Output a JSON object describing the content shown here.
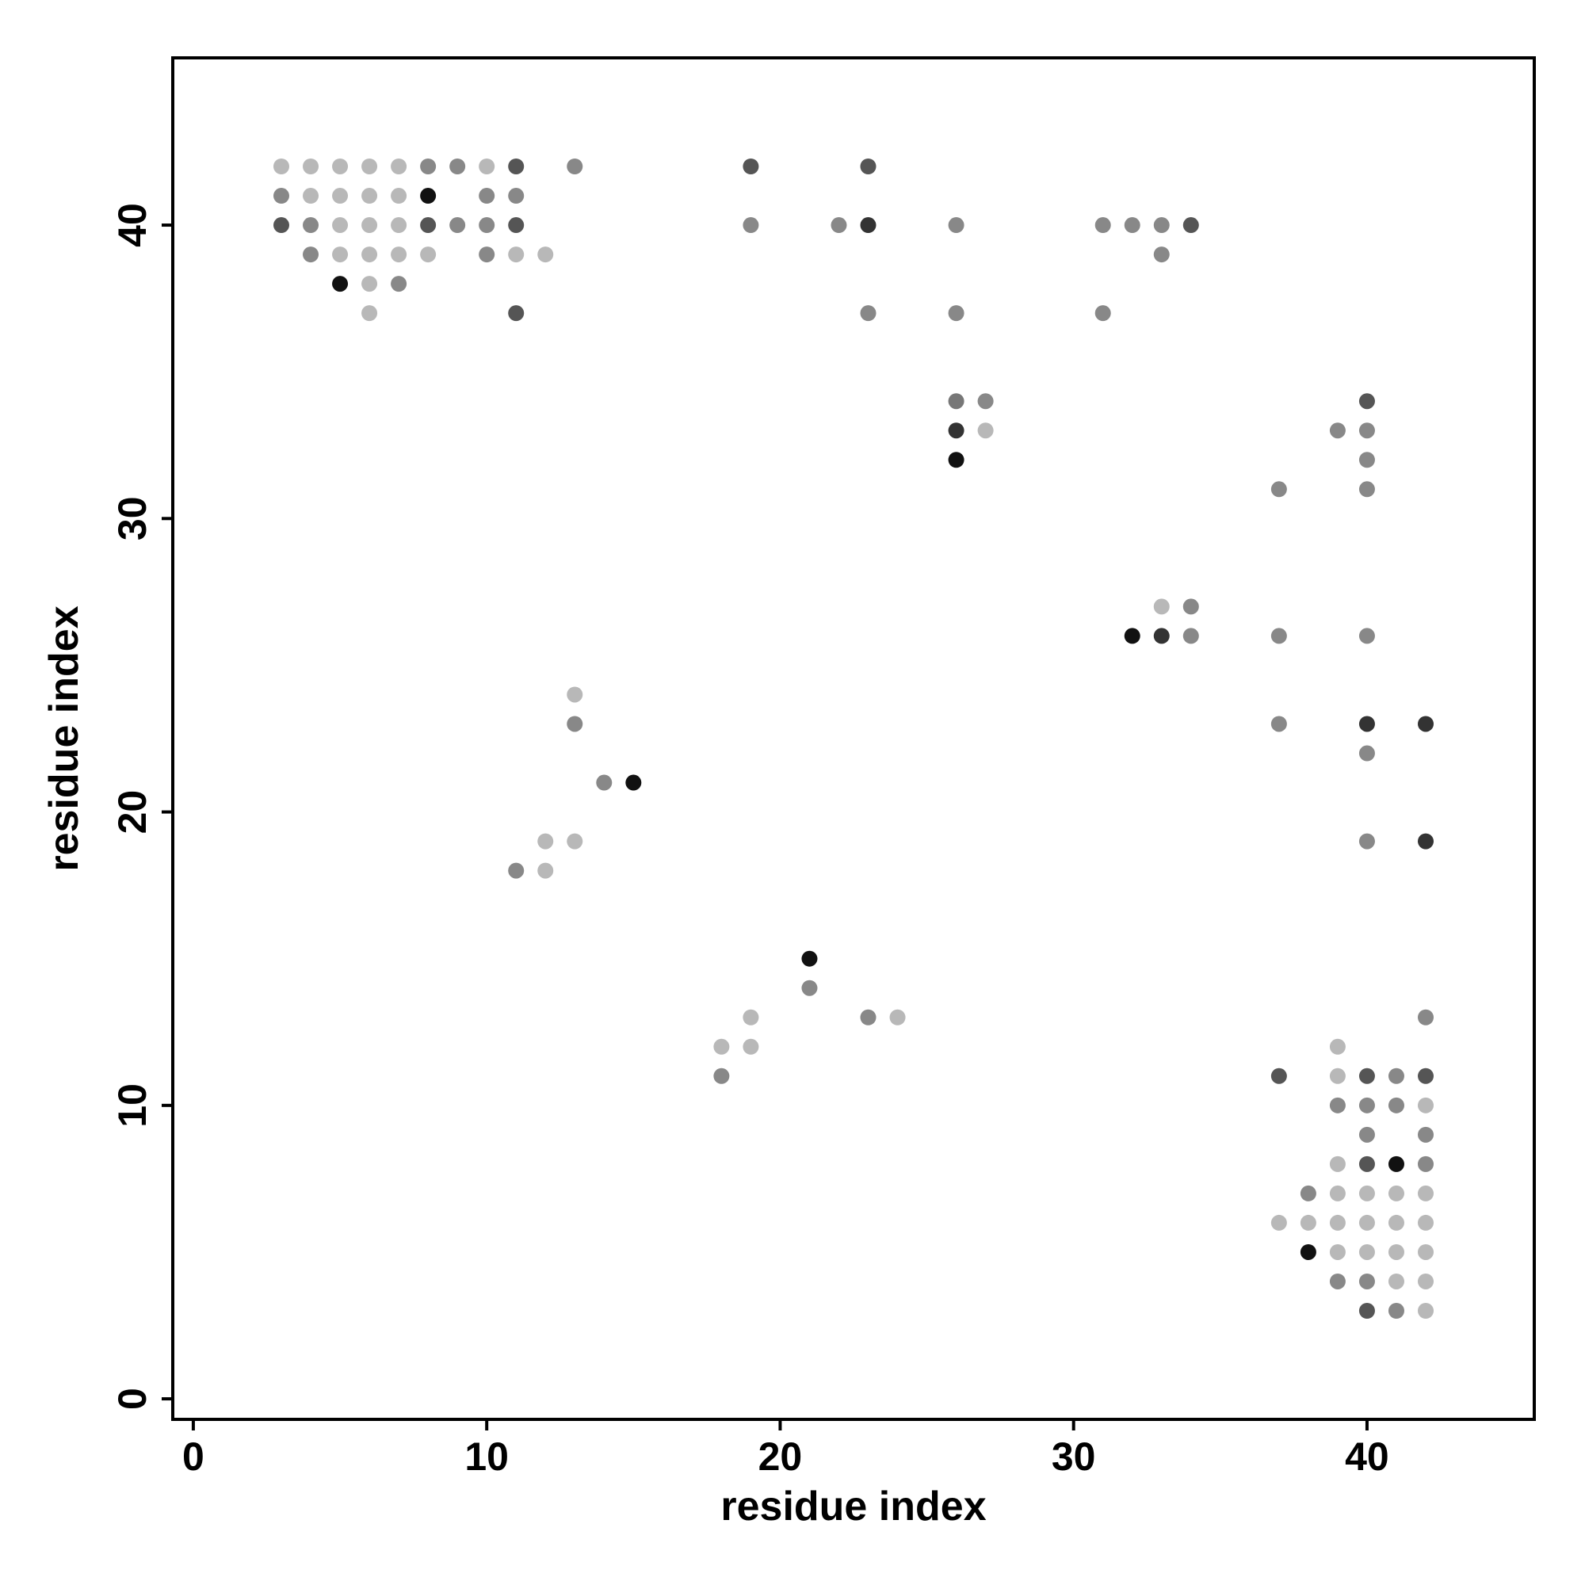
{
  "chart_data": {
    "type": "scatter",
    "xlabel": "residue index",
    "ylabel": "residue index",
    "xlim": [
      -0.7,
      45.7
    ],
    "ylim": [
      -0.7,
      45.7
    ],
    "xticks": [
      0,
      10,
      20,
      30,
      40
    ],
    "yticks": [
      0,
      10,
      20,
      30,
      40
    ],
    "x": [
      3,
      4,
      5,
      6,
      7,
      8,
      9,
      10,
      11,
      13,
      19,
      23,
      3,
      4,
      5,
      6,
      7,
      8,
      10,
      11,
      3,
      4,
      5,
      6,
      7,
      8,
      9,
      10,
      11,
      19,
      22,
      23,
      26,
      31,
      32,
      33,
      34,
      4,
      5,
      6,
      7,
      8,
      10,
      11,
      12,
      33,
      5,
      6,
      7,
      6,
      11,
      23,
      26,
      31,
      26,
      27,
      40,
      26,
      27,
      39,
      40,
      26,
      40,
      37,
      40,
      33,
      34,
      32,
      33,
      34,
      37,
      40,
      13,
      13,
      37,
      40,
      42,
      40,
      14,
      15,
      12,
      13,
      40,
      42,
      11,
      12,
      21,
      21,
      19,
      23,
      24,
      42,
      18,
      19,
      39,
      18,
      37,
      39,
      40,
      41,
      42,
      39,
      40,
      41,
      42,
      40,
      42,
      39,
      40,
      41,
      42,
      38,
      39,
      40,
      41,
      42,
      37,
      38,
      39,
      40,
      41,
      42,
      38,
      39,
      40,
      41,
      42,
      39,
      40,
      41,
      42,
      40,
      41,
      42
    ],
    "y": [
      42,
      42,
      42,
      42,
      42,
      42,
      42,
      42,
      42,
      42,
      42,
      42,
      41,
      41,
      41,
      41,
      41,
      41,
      41,
      41,
      40,
      40,
      40,
      40,
      40,
      40,
      40,
      40,
      40,
      40,
      40,
      40,
      40,
      40,
      40,
      40,
      40,
      39,
      39,
      39,
      39,
      39,
      39,
      39,
      39,
      39,
      38,
      38,
      38,
      37,
      37,
      37,
      37,
      37,
      34,
      34,
      34,
      33,
      33,
      33,
      33,
      32,
      32,
      31,
      31,
      27,
      27,
      26,
      26,
      26,
      26,
      26,
      24,
      23,
      23,
      23,
      23,
      22,
      21,
      21,
      19,
      19,
      19,
      19,
      18,
      18,
      15,
      14,
      13,
      13,
      13,
      13,
      12,
      12,
      12,
      11,
      11,
      11,
      11,
      11,
      11,
      10,
      10,
      10,
      10,
      9,
      9,
      8,
      8,
      8,
      8,
      7,
      7,
      7,
      7,
      7,
      6,
      6,
      6,
      6,
      6,
      6,
      5,
      5,
      5,
      5,
      5,
      4,
      4,
      4,
      4,
      3,
      3,
      3
    ],
    "colors": [
      "#b8b8b8",
      "#b8b8b8",
      "#b8b8b8",
      "#b8b8b8",
      "#b8b8b8",
      "#888888",
      "#888888",
      "#b8b8b8",
      "#555555",
      "#888888",
      "#555555",
      "#555555",
      "#888888",
      "#b8b8b8",
      "#b8b8b8",
      "#b8b8b8",
      "#b8b8b8",
      "#111111",
      "#888888",
      "#888888",
      "#555555",
      "#888888",
      "#b8b8b8",
      "#b8b8b8",
      "#b8b8b8",
      "#555555",
      "#888888",
      "#888888",
      "#555555",
      "#888888",
      "#888888",
      "#333333",
      "#888888",
      "#888888",
      "#888888",
      "#888888",
      "#555555",
      "#888888",
      "#b8b8b8",
      "#b8b8b8",
      "#b8b8b8",
      "#b8b8b8",
      "#888888",
      "#b8b8b8",
      "#b8b8b8",
      "#888888",
      "#111111",
      "#b8b8b8",
      "#888888",
      "#b8b8b8",
      "#555555",
      "#888888",
      "#888888",
      "#888888",
      "#777777",
      "#888888",
      "#555555",
      "#333333",
      "#b8b8b8",
      "#888888",
      "#888888",
      "#111111",
      "#888888",
      "#888888",
      "#888888",
      "#b8b8b8",
      "#888888",
      "#111111",
      "#333333",
      "#888888",
      "#888888",
      "#888888",
      "#b8b8b8",
      "#888888",
      "#888888",
      "#333333",
      "#333333",
      "#888888",
      "#888888",
      "#111111",
      "#b8b8b8",
      "#b8b8b8",
      "#888888",
      "#333333",
      "#888888",
      "#b8b8b8",
      "#111111",
      "#888888",
      "#b8b8b8",
      "#888888",
      "#b8b8b8",
      "#888888",
      "#b8b8b8",
      "#b8b8b8",
      "#b8b8b8",
      "#888888",
      "#555555",
      "#b8b8b8",
      "#555555",
      "#888888",
      "#555555",
      "#888888",
      "#888888",
      "#888888",
      "#b8b8b8",
      "#888888",
      "#888888",
      "#b8b8b8",
      "#555555",
      "#111111",
      "#888888",
      "#888888",
      "#b8b8b8",
      "#b8b8b8",
      "#b8b8b8",
      "#b8b8b8",
      "#b8b8b8",
      "#b8b8b8",
      "#b8b8b8",
      "#b8b8b8",
      "#b8b8b8",
      "#b8b8b8",
      "#111111",
      "#b8b8b8",
      "#b8b8b8",
      "#b8b8b8",
      "#b8b8b8",
      "#888888",
      "#888888",
      "#b8b8b8",
      "#b8b8b8",
      "#555555",
      "#888888",
      "#b8b8b8"
    ]
  }
}
